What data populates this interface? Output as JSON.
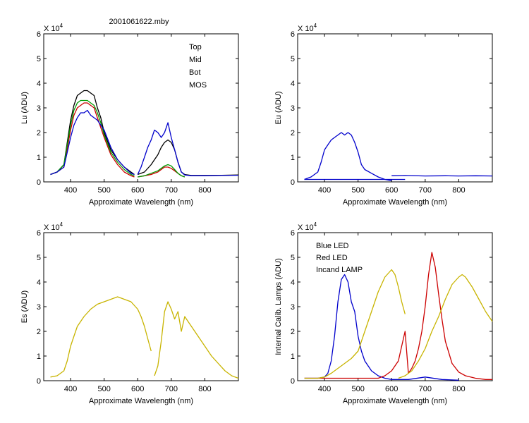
{
  "figure_title": "2001061622.mby",
  "chart_data": [
    {
      "type": "line",
      "xlabel": "Approximate Wavelength (nm)",
      "ylabel": "Lu (ADU)",
      "exponent_label": "X 10",
      "exponent_power": "4",
      "xlim": [
        320,
        900
      ],
      "ylim": [
        0,
        6
      ],
      "xticks": [
        400,
        500,
        600,
        700,
        800
      ],
      "yticks": [
        0,
        1,
        2,
        3,
        4,
        5,
        6
      ],
      "legend_position": "top-right",
      "series": [
        {
          "name": "Top",
          "color": "#000000",
          "x": [
            340,
            360,
            380,
            400,
            410,
            420,
            430,
            440,
            450,
            460,
            470,
            480,
            490,
            500,
            520,
            540,
            560,
            580,
            590
          ],
          "y": [
            0.3,
            0.4,
            0.7,
            2.5,
            3.1,
            3.5,
            3.6,
            3.7,
            3.7,
            3.6,
            3.5,
            3.0,
            2.6,
            2.0,
            1.3,
            0.9,
            0.6,
            0.4,
            0.3
          ]
        },
        {
          "name": "Top",
          "color": "#000000",
          "x": [
            600,
            620,
            640,
            650,
            660,
            670,
            680,
            690,
            700,
            710,
            720,
            730,
            740,
            760,
            800,
            850,
            900
          ],
          "y": [
            0.3,
            0.4,
            0.7,
            0.9,
            1.1,
            1.4,
            1.6,
            1.7,
            1.6,
            1.3,
            0.8,
            0.4,
            0.3,
            0.26,
            0.26,
            0.27,
            0.28
          ]
        },
        {
          "name": "Mid",
          "color": "#cc0000",
          "x": [
            340,
            360,
            380,
            400,
            410,
            420,
            430,
            440,
            450,
            460,
            470,
            480,
            490,
            500,
            520,
            540,
            560,
            580,
            590
          ],
          "y": [
            0.3,
            0.4,
            0.6,
            2.1,
            2.7,
            3.0,
            3.1,
            3.2,
            3.2,
            3.1,
            3.0,
            2.6,
            2.2,
            1.8,
            1.1,
            0.7,
            0.4,
            0.25,
            0.2
          ]
        },
        {
          "name": "Mid",
          "color": "#cc0000",
          "x": [
            600,
            620,
            640,
            660,
            680,
            690,
            700,
            710,
            720,
            730,
            740
          ],
          "y": [
            0.2,
            0.25,
            0.3,
            0.4,
            0.6,
            0.6,
            0.55,
            0.45,
            0.35,
            0.25,
            0.2
          ]
        },
        {
          "name": "Bot",
          "color": "#009900",
          "x": [
            340,
            360,
            380,
            400,
            410,
            420,
            430,
            440,
            450,
            460,
            470,
            480,
            490,
            500,
            520,
            540,
            560,
            580,
            590
          ],
          "y": [
            0.3,
            0.4,
            0.7,
            2.3,
            2.9,
            3.2,
            3.3,
            3.3,
            3.3,
            3.2,
            3.1,
            2.8,
            2.4,
            1.9,
            1.2,
            0.8,
            0.5,
            0.3,
            0.25
          ]
        },
        {
          "name": "Bot",
          "color": "#009900",
          "x": [
            600,
            620,
            640,
            660,
            680,
            690,
            700,
            710,
            720,
            730,
            740
          ],
          "y": [
            0.2,
            0.25,
            0.35,
            0.45,
            0.65,
            0.7,
            0.65,
            0.5,
            0.35,
            0.25,
            0.2
          ]
        },
        {
          "name": "MOS",
          "color": "#0000cc",
          "x": [
            340,
            360,
            380,
            400,
            410,
            420,
            430,
            440,
            450,
            460,
            470,
            480,
            490,
            500,
            520,
            540,
            560,
            580,
            590
          ],
          "y": [
            0.3,
            0.4,
            0.6,
            1.8,
            2.3,
            2.6,
            2.8,
            2.8,
            2.9,
            2.7,
            2.6,
            2.5,
            2.3,
            2.1,
            1.4,
            0.9,
            0.6,
            0.35,
            0.3
          ]
        },
        {
          "name": "MOS",
          "color": "#0000cc",
          "x": [
            600,
            610,
            620,
            630,
            640,
            650,
            660,
            670,
            680,
            690,
            700,
            710,
            720,
            730,
            740,
            760,
            800,
            850,
            900
          ],
          "y": [
            0.3,
            0.6,
            1.0,
            1.4,
            1.7,
            2.1,
            2.0,
            1.8,
            2.0,
            2.4,
            1.8,
            1.3,
            0.8,
            0.4,
            0.28,
            0.25,
            0.25,
            0.26,
            0.27
          ]
        }
      ]
    },
    {
      "type": "line",
      "xlabel": "Approximate Wavelength (nm)",
      "ylabel": "Eu  (ADU)",
      "exponent_label": "X 10",
      "exponent_power": "4",
      "xlim": [
        320,
        900
      ],
      "ylim": [
        0,
        6
      ],
      "xticks": [
        400,
        500,
        600,
        700,
        800
      ],
      "yticks": [
        0,
        1,
        2,
        3,
        4,
        5,
        6
      ],
      "series": [
        {
          "name": "",
          "color": "#0000cc",
          "x": [
            340,
            360,
            380,
            390,
            400,
            410,
            420,
            430,
            440,
            450,
            460,
            470,
            480,
            490,
            500,
            510,
            520,
            540,
            560,
            580,
            600
          ],
          "y": [
            0.1,
            0.2,
            0.4,
            0.8,
            1.3,
            1.5,
            1.7,
            1.8,
            1.9,
            2.0,
            1.9,
            2.0,
            1.9,
            1.6,
            1.2,
            0.7,
            0.5,
            0.35,
            0.2,
            0.1,
            0.05
          ]
        },
        {
          "name": "",
          "color": "#0000cc",
          "x": [
            600,
            640,
            700,
            760,
            800,
            850,
            900
          ],
          "y": [
            0.25,
            0.26,
            0.24,
            0.25,
            0.24,
            0.25,
            0.24
          ]
        },
        {
          "name": "",
          "color": "#0000cc",
          "x": [
            340,
            640
          ],
          "y": [
            0.1,
            0.1
          ]
        }
      ]
    },
    {
      "type": "line",
      "xlabel": "Approximate Wavelength (nm)",
      "ylabel": "Es  (ADU)",
      "exponent_label": "X 10",
      "exponent_power": "4",
      "xlim": [
        320,
        900
      ],
      "ylim": [
        0,
        6
      ],
      "xticks": [
        400,
        500,
        600,
        700,
        800
      ],
      "yticks": [
        0,
        1,
        2,
        3,
        4,
        5,
        6
      ],
      "series": [
        {
          "name": "",
          "color": "#c8b400",
          "x": [
            340,
            360,
            380,
            390,
            400,
            410,
            420,
            440,
            460,
            480,
            500,
            520,
            540,
            560,
            580,
            600,
            610,
            620,
            630,
            640
          ],
          "y": [
            0.15,
            0.2,
            0.4,
            0.8,
            1.4,
            1.8,
            2.2,
            2.6,
            2.9,
            3.1,
            3.2,
            3.3,
            3.4,
            3.3,
            3.2,
            2.9,
            2.6,
            2.2,
            1.7,
            1.2
          ]
        },
        {
          "name": "",
          "color": "#c8b400",
          "x": [
            650,
            660,
            670,
            680,
            690,
            700,
            710,
            720,
            730,
            740,
            750,
            760,
            780,
            800,
            820,
            840,
            860,
            880,
            890,
            900
          ],
          "y": [
            0.2,
            0.6,
            1.6,
            2.8,
            3.2,
            2.9,
            2.5,
            2.8,
            2.0,
            2.6,
            2.4,
            2.2,
            1.8,
            1.4,
            1.0,
            0.7,
            0.4,
            0.2,
            0.15,
            0.1
          ]
        }
      ]
    },
    {
      "type": "line",
      "xlabel": "Approximate Wavelength (nm)",
      "ylabel": "Internal Calib. Lamps (ADU)",
      "exponent_label": "X 10",
      "exponent_power": "4",
      "xlim": [
        320,
        900
      ],
      "ylim": [
        0,
        6
      ],
      "xticks": [
        400,
        500,
        600,
        700,
        800
      ],
      "yticks": [
        0,
        1,
        2,
        3,
        4,
        5,
        6
      ],
      "legend_position": "top-left",
      "series": [
        {
          "name": "Blue LED",
          "color": "#0000cc",
          "x": [
            340,
            380,
            400,
            410,
            420,
            430,
            440,
            450,
            460,
            470,
            480,
            490,
            500,
            510,
            520,
            540,
            560,
            580,
            600,
            650,
            700,
            750,
            800
          ],
          "y": [
            0.1,
            0.1,
            0.15,
            0.3,
            0.8,
            1.8,
            3.2,
            4.1,
            4.3,
            4.0,
            3.2,
            2.8,
            1.8,
            1.2,
            0.8,
            0.4,
            0.2,
            0.1,
            0.05,
            0.05,
            0.15,
            0.05,
            0.02
          ]
        },
        {
          "name": "Red LED",
          "color": "#cc0000",
          "x": [
            340,
            500,
            560,
            580,
            600,
            610,
            620,
            630,
            640,
            650,
            660,
            670,
            680,
            690,
            700,
            710,
            720,
            730,
            740,
            750,
            760,
            780,
            800,
            820,
            850,
            880,
            900
          ],
          "y": [
            0.1,
            0.1,
            0.1,
            0.2,
            0.4,
            0.6,
            0.8,
            1.4,
            2.0,
            0.3,
            0.5,
            0.8,
            1.3,
            2.0,
            3.0,
            4.3,
            5.2,
            4.6,
            3.5,
            2.5,
            1.6,
            0.7,
            0.35,
            0.2,
            0.1,
            0.05,
            0.05
          ]
        },
        {
          "name": "Incand LAMP",
          "color": "#c8b400",
          "x": [
            340,
            360,
            380,
            400,
            420,
            440,
            460,
            480,
            500,
            520,
            540,
            560,
            580,
            600,
            610,
            620,
            630,
            640
          ],
          "y": [
            0.1,
            0.1,
            0.1,
            0.15,
            0.3,
            0.5,
            0.7,
            0.9,
            1.2,
            2.0,
            2.8,
            3.6,
            4.2,
            4.5,
            4.3,
            3.8,
            3.2,
            2.7
          ]
        },
        {
          "name": "Incand LAMP",
          "color": "#c8b400",
          "x": [
            620,
            640,
            660,
            680,
            700,
            720,
            740,
            760,
            780,
            800,
            810,
            820,
            840,
            860,
            880,
            900
          ],
          "y": [
            0.1,
            0.2,
            0.4,
            0.8,
            1.3,
            2.0,
            2.6,
            3.3,
            3.9,
            4.2,
            4.3,
            4.2,
            3.8,
            3.3,
            2.8,
            2.4
          ]
        }
      ]
    }
  ]
}
